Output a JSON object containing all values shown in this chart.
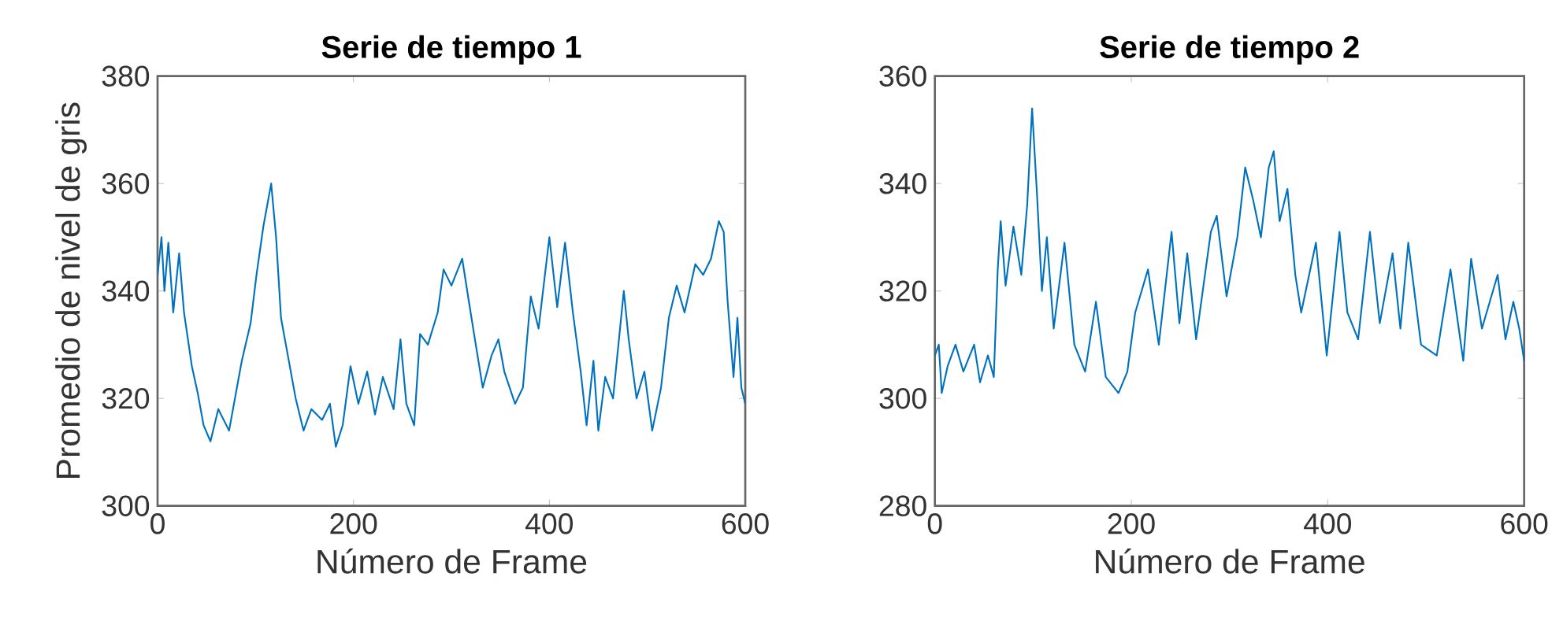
{
  "chart_data": [
    {
      "type": "line",
      "title": "Serie de tiempo 1",
      "xlabel": "Número de Frame",
      "ylabel": "Promedio de nivel de gris",
      "xlim": [
        0,
        600
      ],
      "ylim": [
        300,
        380
      ],
      "xticks": [
        0,
        200,
        400,
        600
      ],
      "yticks": [
        300,
        320,
        340,
        360,
        380
      ],
      "series": [
        {
          "color": "#0072bd",
          "x": [
            0,
            4,
            7,
            11,
            16,
            22,
            27,
            35,
            41,
            47,
            54,
            62,
            73,
            81,
            86,
            95,
            101,
            108,
            116,
            121,
            126,
            131,
            141,
            149,
            157,
            168,
            176,
            182,
            189,
            197,
            205,
            214,
            222,
            230,
            241,
            248,
            254,
            262,
            268,
            276,
            286,
            292,
            300,
            311,
            317,
            324,
            332,
            341,
            348,
            354,
            365,
            373,
            381,
            389,
            400,
            408,
            416,
            424,
            432,
            438,
            445,
            450,
            457,
            465,
            476,
            481,
            489,
            497,
            505,
            514,
            522,
            530,
            538,
            549,
            557,
            565,
            573,
            578,
            582,
            588,
            592,
            596,
            600
          ],
          "values": [
            343,
            350,
            340,
            349,
            336,
            347,
            336,
            326,
            321,
            315,
            312,
            318,
            314,
            322,
            327,
            334,
            343,
            352,
            360,
            350,
            335,
            330,
            320,
            314,
            318,
            316,
            319,
            311,
            315,
            326,
            319,
            325,
            317,
            324,
            318,
            331,
            319,
            315,
            332,
            330,
            336,
            344,
            341,
            346,
            339,
            331,
            322,
            328,
            331,
            325,
            319,
            322,
            339,
            333,
            350,
            337,
            349,
            336,
            325,
            315,
            327,
            314,
            324,
            320,
            340,
            331,
            320,
            325,
            314,
            322,
            335,
            341,
            336,
            345,
            343,
            346,
            353,
            351,
            338,
            324,
            335,
            322,
            319
          ]
        }
      ]
    },
    {
      "type": "line",
      "title": "Serie de tiempo 2",
      "xlabel": "Número de Frame",
      "xlim": [
        0,
        600
      ],
      "ylim": [
        280,
        360
      ],
      "xticks": [
        0,
        200,
        400,
        600
      ],
      "yticks": [
        280,
        300,
        320,
        340,
        360
      ],
      "series": [
        {
          "color": "#0072bd",
          "x": [
            0,
            4,
            7,
            13,
            21,
            29,
            40,
            46,
            54,
            60,
            64,
            67,
            72,
            80,
            88,
            94,
            99,
            104,
            109,
            114,
            121,
            132,
            142,
            153,
            164,
            174,
            187,
            196,
            204,
            217,
            228,
            241,
            249,
            257,
            266,
            281,
            287,
            297,
            308,
            316,
            324,
            332,
            340,
            345,
            351,
            359,
            367,
            373,
            388,
            399,
            412,
            420,
            431,
            443,
            453,
            466,
            474,
            482,
            495,
            511,
            525,
            538,
            546,
            557,
            573,
            581,
            589,
            595,
            600
          ],
          "values": [
            308,
            310,
            301,
            306,
            310,
            305,
            310,
            303,
            308,
            304,
            324,
            333,
            321,
            332,
            323,
            336,
            354,
            338,
            320,
            330,
            313,
            329,
            310,
            305,
            318,
            304,
            301,
            305,
            316,
            324,
            310,
            331,
            314,
            327,
            311,
            331,
            334,
            319,
            330,
            343,
            337,
            330,
            343,
            346,
            333,
            339,
            323,
            316,
            329,
            308,
            331,
            316,
            311,
            331,
            314,
            327,
            313,
            329,
            310,
            308,
            324,
            307,
            326,
            313,
            323,
            311,
            318,
            313,
            307
          ]
        }
      ]
    }
  ]
}
